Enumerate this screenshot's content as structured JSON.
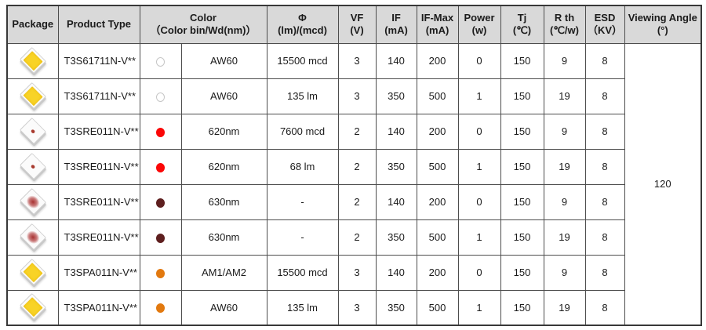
{
  "table": {
    "headers": [
      {
        "line1": "Package",
        "line2": ""
      },
      {
        "line1": "Product Type",
        "line2": ""
      },
      {
        "line1": "Color",
        "line2": "（Color bin/Wd(nm)）"
      },
      {
        "line1": "Φ",
        "line2": "(lm)/(mcd)"
      },
      {
        "line1": "VF",
        "line2": "(V)"
      },
      {
        "line1": "IF",
        "line2": "(mA)"
      },
      {
        "line1": "IF-Max",
        "line2": "(mA)"
      },
      {
        "line1": "Power",
        "line2": "(w)"
      },
      {
        "line1": "Tj",
        "line2": "(℃)"
      },
      {
        "line1": "R th",
        "line2": "(℃/w)"
      },
      {
        "line1": "ESD",
        "line2": "（KV）"
      },
      {
        "line1": "Viewing Angle",
        "line2": "(°)"
      }
    ],
    "rows": [
      {
        "package_icon": "yellow",
        "product_type": "T3S61711N-V**",
        "color_dot": "hollow",
        "color_bin": "AW60",
        "flux": "15500 mcd",
        "vf": "3",
        "if": "140",
        "if_max": "200",
        "power": "0",
        "tj": "150",
        "rth": "9",
        "esd": "8"
      },
      {
        "package_icon": "yellow",
        "product_type": "T3S61711N-V**",
        "color_dot": "hollow",
        "color_bin": "AW60",
        "flux": "135 lm",
        "vf": "3",
        "if": "350",
        "if_max": "500",
        "power": "1",
        "tj": "150",
        "rth": "19",
        "esd": "8"
      },
      {
        "package_icon": "red-dot",
        "product_type": "T3SRE011N-V**",
        "color_dot": "red",
        "color_bin": "620nm",
        "flux": "7600 mcd",
        "vf": "2",
        "if": "140",
        "if_max": "200",
        "power": "0",
        "tj": "150",
        "rth": "9",
        "esd": "8"
      },
      {
        "package_icon": "red-dot",
        "product_type": "T3SRE011N-V**",
        "color_dot": "red",
        "color_bin": "620nm",
        "flux": "68 lm",
        "vf": "2",
        "if": "350",
        "if_max": "500",
        "power": "1",
        "tj": "150",
        "rth": "19",
        "esd": "8"
      },
      {
        "package_icon": "red-blur",
        "product_type": "T3SRE011N-V**",
        "color_dot": "dark-red",
        "color_bin": "630nm",
        "flux": "-",
        "vf": "2",
        "if": "140",
        "if_max": "200",
        "power": "0",
        "tj": "150",
        "rth": "9",
        "esd": "8"
      },
      {
        "package_icon": "red-blur",
        "product_type": "T3SRE011N-V**",
        "color_dot": "dark-red",
        "color_bin": "630nm",
        "flux": "-",
        "vf": "2",
        "if": "350",
        "if_max": "500",
        "power": "1",
        "tj": "150",
        "rth": "19",
        "esd": "8"
      },
      {
        "package_icon": "yellow",
        "product_type": "T3SPA011N-V**",
        "color_dot": "orange",
        "color_bin": "AM1/AM2",
        "flux": "15500 mcd",
        "vf": "3",
        "if": "140",
        "if_max": "200",
        "power": "0",
        "tj": "150",
        "rth": "9",
        "esd": "8"
      },
      {
        "package_icon": "yellow",
        "product_type": "T3SPA011N-V**",
        "color_dot": "orange",
        "color_bin": "AW60",
        "flux": "135 lm",
        "vf": "3",
        "if": "350",
        "if_max": "500",
        "power": "1",
        "tj": "150",
        "rth": "19",
        "esd": "8"
      }
    ],
    "viewing_angle": "120",
    "colors": {
      "header_bg": "#d9d9d9",
      "grid_border": "#4d4d4d",
      "outer_border": "#383838",
      "chip_yellow": "#f8d327",
      "dot_red": "#fb0707",
      "dot_dark_red": "#5e1f1f",
      "dot_orange": "#e2790f"
    }
  }
}
